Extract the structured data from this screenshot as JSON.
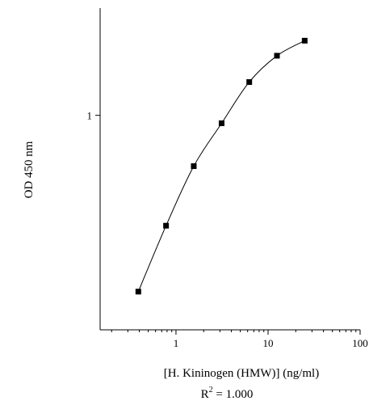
{
  "chart_data": {
    "type": "scatter",
    "xlabel": "[H. Kininogen (HMW)] (ng/ml)",
    "ylabel": "OD 450 nm",
    "x_scale": "log",
    "y_scale": "log",
    "xlim": [
      0.15,
      100
    ],
    "ylim": [
      0.25,
      2.0
    ],
    "x_ticks": [
      {
        "value": 1,
        "label": "1"
      },
      {
        "value": 10,
        "label": "10"
      },
      {
        "value": 100,
        "label": "100"
      }
    ],
    "y_ticks": [
      {
        "value": 1,
        "label": "1"
      }
    ],
    "grid": false,
    "legend": "none",
    "fit_line": true,
    "series": [
      {
        "x": [
          0.39,
          0.78,
          1.56,
          3.13,
          6.25,
          12.5,
          25
        ],
        "y": [
          0.32,
          0.49,
          0.72,
          0.95,
          1.24,
          1.47,
          1.62
        ]
      }
    ],
    "annotation": {
      "base": "R",
      "sup": "2",
      "rest": " = 1.000"
    }
  }
}
